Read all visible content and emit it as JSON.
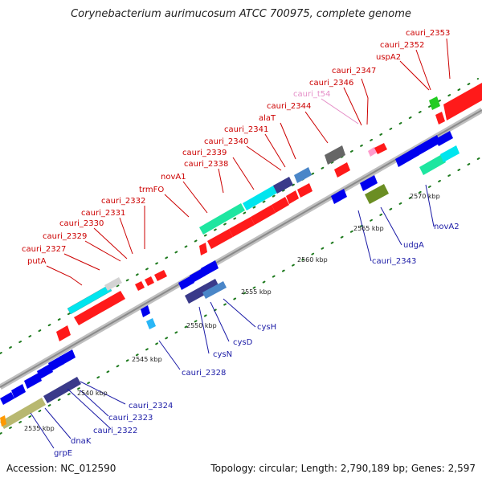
{
  "header": {
    "title": "Corynebacterium aurimucosum ATCC 700975, complete genome"
  },
  "footer": {
    "accession": "Accession: NC_012590",
    "summary": "Topology: circular; Length: 2,790,189 bp; Genes: 2,597"
  },
  "scale_labels": [
    "2535 kbp",
    "2540 kbp",
    "2545 kbp",
    "2550 kbp",
    "2555 kbp",
    "2560 kbp",
    "2565 kbp",
    "2570 kbp"
  ],
  "labels_top": [
    "putA",
    "cauri_2327",
    "cauri_2329",
    "cauri_2330",
    "cauri_2331",
    "cauri_2332",
    "trmFO",
    "novA1",
    "cauri_2338",
    "cauri_2339",
    "cauri_2340",
    "cauri_2341",
    "alaT",
    "cauri_2344",
    "cauri_t54",
    "cauri_2346",
    "cauri_2347",
    "uspA2",
    "cauri_2352",
    "cauri_2353"
  ],
  "labels_bottom": [
    "grpE",
    "dnaK",
    "cauri_2322",
    "cauri_2323",
    "cauri_2324",
    "cauri_2328",
    "cysN",
    "cysD",
    "cysH",
    "cauri_2343",
    "udgA",
    "novA2"
  ],
  "colors": {
    "forward_label": "#cc0000",
    "reverse_label": "#1a1aa6",
    "trna_label": "#e58fc8",
    "backbone": "#999999",
    "tick": "#1e7a1e",
    "cds_forward": "#ff0000",
    "cds_reverse": "#0000ee"
  }
}
